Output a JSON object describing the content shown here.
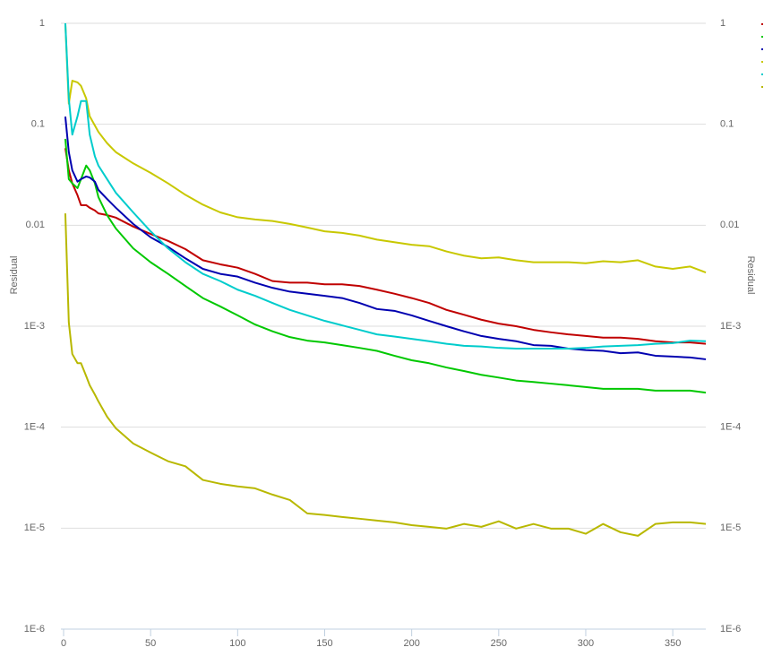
{
  "chart_data": {
    "type": "line",
    "y_label": "Residual",
    "y_scale": "log",
    "grid": true,
    "legend_position": "top-right",
    "xlim": [
      0,
      370
    ],
    "xticks": [
      0,
      50,
      100,
      150,
      200,
      250,
      300,
      350
    ],
    "ylim": [
      1e-06,
      1
    ],
    "yticks": [
      {
        "value": 1e-06,
        "label": "1E-6"
      },
      {
        "value": 1e-05,
        "label": "1E-5"
      },
      {
        "value": 0.0001,
        "label": "1E-4"
      },
      {
        "value": 0.001,
        "label": "1E-3"
      },
      0.01,
      0.1,
      1
    ],
    "x": [
      1,
      3,
      5,
      8,
      10,
      13,
      15,
      18,
      20,
      25,
      30,
      40,
      50,
      60,
      70,
      80,
      90,
      100,
      110,
      120,
      130,
      140,
      150,
      160,
      170,
      180,
      190,
      200,
      210,
      220,
      230,
      240,
      250,
      260,
      270,
      280,
      290,
      300,
      310,
      320,
      330,
      340,
      350,
      360,
      369
    ],
    "series": [
      {
        "color": "#c00000",
        "values": [
          0.058,
          0.035,
          0.026,
          0.0198,
          0.0158,
          0.0158,
          0.0149,
          0.014,
          0.0131,
          0.0126,
          0.0119,
          0.0097,
          0.0082,
          0.007,
          0.0058,
          0.0045,
          0.0041,
          0.0038,
          0.0033,
          0.0028,
          0.0027,
          0.0027,
          0.0026,
          0.0026,
          0.0025,
          0.0023,
          0.0021,
          0.0019,
          0.0017,
          0.00145,
          0.0013,
          0.00116,
          0.00106,
          0.001,
          0.00092,
          0.00087,
          0.00083,
          0.0008,
          0.00077,
          0.00077,
          0.00075,
          0.00071,
          0.00069,
          0.00069,
          0.00067
        ]
      },
      {
        "color": "#00c800",
        "values": [
          0.0717,
          0.0286,
          0.026,
          0.0233,
          0.0286,
          0.039,
          0.035,
          0.026,
          0.019,
          0.0126,
          0.0093,
          0.0059,
          0.0043,
          0.0033,
          0.0025,
          0.0019,
          0.00157,
          0.00128,
          0.00104,
          0.00089,
          0.00078,
          0.00072,
          0.00069,
          0.00065,
          0.00061,
          0.00057,
          0.00051,
          0.00046,
          0.00043,
          0.00039,
          0.00036,
          0.00033,
          0.00031,
          0.00029,
          0.00028,
          0.00027,
          0.00026,
          0.00025,
          0.00024,
          0.00024,
          0.00024,
          0.00023,
          0.00023,
          0.00023,
          0.00022
        ]
      },
      {
        "color": "#0000b0",
        "values": [
          0.119,
          0.053,
          0.035,
          0.027,
          0.0286,
          0.0304,
          0.0297,
          0.027,
          0.0224,
          0.0182,
          0.0149,
          0.0103,
          0.0076,
          0.0061,
          0.0047,
          0.0037,
          0.0033,
          0.0031,
          0.0027,
          0.0024,
          0.0022,
          0.0021,
          0.002,
          0.0019,
          0.0017,
          0.00148,
          0.00142,
          0.00128,
          0.00113,
          0.001,
          0.00089,
          0.0008,
          0.00075,
          0.00071,
          0.00065,
          0.00064,
          0.0006,
          0.00058,
          0.00057,
          0.00054,
          0.00055,
          0.00051,
          0.0005,
          0.00049,
          0.00047
        ]
      },
      {
        "color": "#c8c800",
        "values": [
          1,
          0.16,
          0.27,
          0.26,
          0.24,
          0.18,
          0.12,
          0.097,
          0.084,
          0.065,
          0.053,
          0.041,
          0.033,
          0.026,
          0.02,
          0.016,
          0.0134,
          0.012,
          0.0114,
          0.011,
          0.0103,
          0.0095,
          0.0087,
          0.0084,
          0.0079,
          0.0072,
          0.0068,
          0.0064,
          0.0062,
          0.0055,
          0.005,
          0.0047,
          0.0048,
          0.0045,
          0.0043,
          0.0043,
          0.0043,
          0.0042,
          0.0044,
          0.0043,
          0.0045,
          0.0039,
          0.0037,
          0.0039,
          0.0034
        ]
      },
      {
        "color": "#00cccc",
        "values": [
          1,
          0.18,
          0.079,
          0.12,
          0.17,
          0.17,
          0.079,
          0.048,
          0.039,
          0.0286,
          0.021,
          0.0134,
          0.0087,
          0.0059,
          0.0043,
          0.0033,
          0.0028,
          0.0023,
          0.002,
          0.0017,
          0.00145,
          0.00128,
          0.00113,
          0.00102,
          0.00092,
          0.00083,
          0.00079,
          0.00075,
          0.00071,
          0.00067,
          0.00064,
          0.00063,
          0.00061,
          0.0006,
          0.0006,
          0.0006,
          0.0006,
          0.00061,
          0.00063,
          0.00064,
          0.00065,
          0.00067,
          0.00068,
          0.00072,
          0.00071
        ]
      },
      {
        "color": "#b8b800",
        "values": [
          0.0131,
          0.00109,
          0.00053,
          0.00043,
          0.00043,
          0.00032,
          0.00026,
          0.00021,
          0.00018,
          0.000127,
          9.76e-05,
          6.9e-05,
          5.6e-05,
          4.6e-05,
          4.1e-05,
          3e-05,
          2.75e-05,
          2.59e-05,
          2.48e-05,
          2.15e-05,
          1.9e-05,
          1.4e-05,
          1.35e-05,
          1.29e-05,
          1.24e-05,
          1.19e-05,
          1.14e-05,
          1.07e-05,
          1.03e-05,
          9.9e-06,
          1.1e-05,
          1.03e-05,
          1.17e-05,
          9.9e-06,
          1.1e-05,
          9.9e-06,
          9.9e-06,
          8.8e-06,
          1.1e-05,
          9.1e-06,
          8.4e-06,
          1.1e-05,
          1.14e-05,
          1.14e-05,
          1.1e-05
        ]
      }
    ]
  }
}
